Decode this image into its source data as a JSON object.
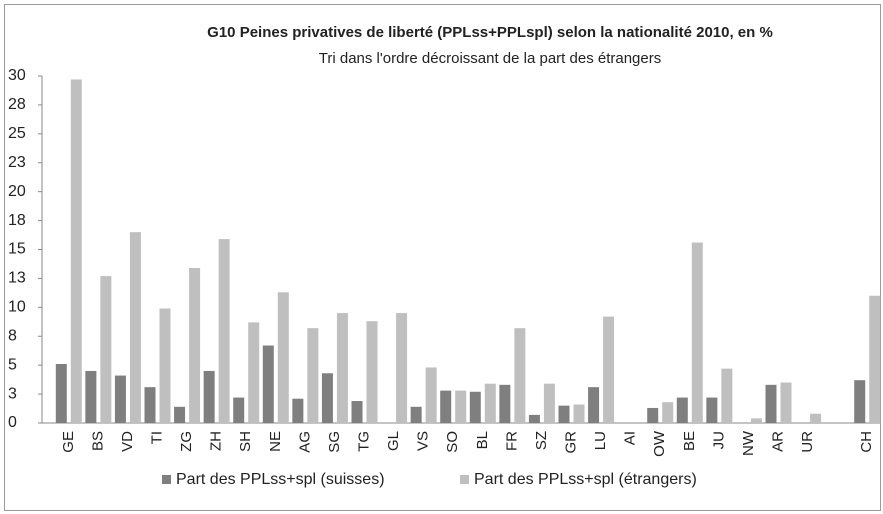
{
  "chart_data": {
    "type": "bar",
    "title": "G10 Peines privatives de liberté (PPLss+PPLspl) selon la nationalité 2010, en %",
    "subtitle": "Tri dans l'ordre décroissant de la part des étrangers",
    "categories": [
      "GE",
      "BS",
      "VD",
      "TI",
      "ZG",
      "ZH",
      "SH",
      "NE",
      "AG",
      "SG",
      "TG",
      "GL",
      "VS",
      "SO",
      "BL",
      "FR",
      "SZ",
      "GR",
      "LU",
      "AI",
      "OW",
      "BE",
      "JU",
      "NW",
      "AR",
      "UR",
      null,
      "CH"
    ],
    "series": [
      {
        "name": "Part des PPLss+spl (suisses)",
        "color": "#7f7f7f",
        "values": [
          5.1,
          4.5,
          4.1,
          3.1,
          1.4,
          4.5,
          2.2,
          6.7,
          2.1,
          4.3,
          1.9,
          0,
          1.4,
          2.8,
          2.7,
          3.3,
          0.7,
          1.5,
          3.1,
          0,
          1.3,
          2.2,
          2.2,
          0,
          3.3,
          0,
          null,
          3.7
        ]
      },
      {
        "name": "Part des PPLss+spl (étrangers)",
        "color": "#bfbfbf",
        "values": [
          29.7,
          12.7,
          16.5,
          9.9,
          13.4,
          15.9,
          8.7,
          11.3,
          8.2,
          9.5,
          8.8,
          9.5,
          4.8,
          2.8,
          3.4,
          8.2,
          3.4,
          1.6,
          9.2,
          0,
          1.8,
          15.6,
          4.7,
          0.4,
          3.5,
          0.8,
          null,
          11.0
        ]
      }
    ],
    "ylim": [
      0,
      30
    ],
    "yticks": [
      0,
      {
        "value": 2.5,
        "label": "3"
      },
      5,
      {
        "value": 7.5,
        "label": "8"
      },
      10,
      {
        "value": 12.5,
        "label": "13"
      },
      15,
      {
        "value": 17.5,
        "label": "18"
      },
      20,
      {
        "value": 22.5,
        "label": "23"
      },
      25,
      {
        "value": 27.5,
        "label": "28"
      },
      30
    ],
    "grid": false
  }
}
